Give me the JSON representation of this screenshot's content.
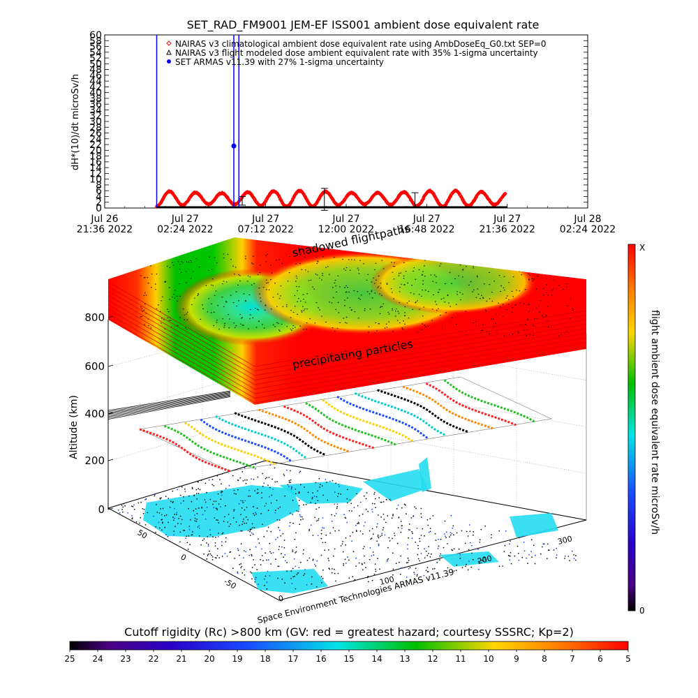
{
  "chart_data": [
    {
      "type": "line",
      "title": "SET_RAD_FM9001  JEM-EF ISS001 ambient dose equivalent rate",
      "ylabel": "dH*(10)/dt microSv/h",
      "ylim": [
        0,
        60
      ],
      "y_ticks": [
        0,
        2,
        4,
        6,
        8,
        10,
        12,
        14,
        16,
        18,
        20,
        22,
        24,
        26,
        28,
        30,
        32,
        34,
        36,
        38,
        40,
        42,
        44,
        46,
        48,
        50,
        52,
        54,
        56,
        58,
        60
      ],
      "x_ticks": [
        {
          "day": "Jul 26",
          "time": "21:36 2022"
        },
        {
          "day": "Jul 27",
          "time": "02:24 2022"
        },
        {
          "day": "Jul 27",
          "time": "07:12 2022"
        },
        {
          "day": "Jul 27",
          "time": "12:00 2022"
        },
        {
          "day": "Jul 27",
          "time": "16:48 2022"
        },
        {
          "day": "Jul 27",
          "time": "21:36 2022"
        },
        {
          "day": "Jul 28",
          "time": "02:24 2022"
        }
      ],
      "xlim_hours": [
        0,
        28.8
      ],
      "legend_position": "top",
      "series": [
        {
          "name": "NAIRAS v3 climatological ambient dose equivalent rate using AmbDoseEq_G0.txt SEP=0",
          "marker": "open-diamond",
          "color": "#ff0000",
          "x_range_hours": [
            3.1,
            23.9
          ],
          "orbit_period_hours": 1.55,
          "min": 0.5,
          "max": 6
        },
        {
          "name": "NAIRAS v3 flight modeled dose ambient equivalent rate with 35% 1-sigma uncertainty",
          "marker": "open-triangle",
          "color": "#000000",
          "x_range_hours": [
            3.1,
            24.0
          ],
          "value": 0.3,
          "error_bars": [
            {
              "x": 8.2,
              "y": 2.5,
              "err": 1.5
            },
            {
              "x": 13.1,
              "y": 3.0,
              "err": 3.8
            },
            {
              "x": 18.5,
              "y": 2.8,
              "err": 2.5
            }
          ]
        },
        {
          "name": "SET ARMAS v11.39 with 27% 1-sigma uncertainty",
          "marker": "filled-circle",
          "color": "#0000ff",
          "spikes_x_hours": [
            3.1,
            7.7,
            8.0
          ],
          "points": [
            {
              "x": 7.7,
              "y": 21.5
            }
          ],
          "baseline": 0.2
        }
      ]
    },
    {
      "type": "3d-surface",
      "zlabel": "Altitude (km)",
      "z_ticks": [
        "0",
        "200",
        "400",
        "600",
        "800"
      ],
      "lat_ticks": [
        "-50",
        "0",
        "50"
      ],
      "lon_ticks": [
        "0",
        "100",
        "200",
        "300"
      ],
      "layer_annotations": [
        "shadowed flightpaths",
        "precipitating particles"
      ],
      "credit": "Space Environment Technologies ARMAS v11.39"
    }
  ],
  "colorbar_right": {
    "label": "flight ambient dose equivalent rate microSv/h",
    "top_label": "X",
    "bottom_label": "0"
  },
  "colorbar_bottom": {
    "label": "Cutoff rigidity (Rc) >800 km (GV: red = greatest hazard; courtesy SSSRC; Kp=2)",
    "ticks": [
      "25",
      "24",
      "23",
      "22",
      "21",
      "20",
      "19",
      "18",
      "17",
      "16",
      "15",
      "14",
      "13",
      "12",
      "11",
      "10",
      "9",
      "8",
      "7",
      "6",
      "5"
    ]
  },
  "colors": {
    "climatology": "#ff0000",
    "armas": "#0000ff",
    "ocean": "#22ddf0",
    "land_dots": "#111111"
  }
}
